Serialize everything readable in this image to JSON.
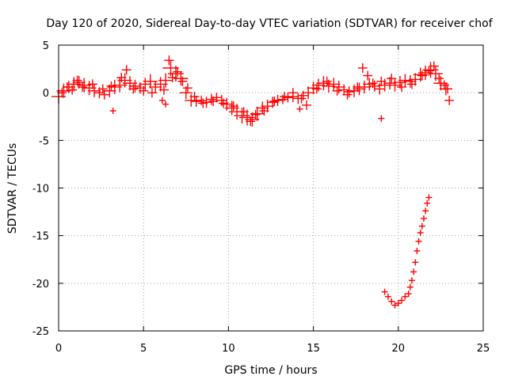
{
  "chart_data": {
    "type": "scatter",
    "title": "Day 120 of 2020, Sidereal Day-to-day VTEC variation (SDTVAR) for receiver chof",
    "xlabel": "GPS time / hours",
    "ylabel": "SDTVAR / TECUs",
    "xlim": [
      0,
      25
    ],
    "ylim": [
      -25,
      5
    ],
    "xticks": [
      0,
      5,
      10,
      15,
      20,
      25
    ],
    "yticks": [
      -25,
      -20,
      -15,
      -10,
      -5,
      0,
      5
    ],
    "xtick_labels": [
      "0",
      "5",
      "10",
      "15",
      "20",
      "25"
    ],
    "ytick_labels": [
      "-25",
      "-20",
      "-15",
      "-10",
      "-5",
      "0",
      "5"
    ],
    "grid": true,
    "marker": "+",
    "series": [
      {
        "name": "SDTVAR",
        "color": "#ff0000",
        "x": [
          0.0,
          0.3,
          0.6,
          0.9,
          1.2,
          1.5,
          1.8,
          2.1,
          2.4,
          2.7,
          3.0,
          3.3,
          3.6,
          3.9,
          4.2,
          4.5,
          4.8,
          5.1,
          5.4,
          5.7,
          6.0,
          6.3,
          6.6,
          6.9,
          7.2,
          7.5,
          7.8,
          8.1,
          8.4,
          8.7,
          9.0,
          9.3,
          9.6,
          9.9,
          10.2,
          10.5,
          10.8,
          11.1,
          11.4,
          11.7,
          12.0,
          12.3,
          12.6,
          12.9,
          13.2,
          13.5,
          13.8,
          14.1,
          14.4,
          14.7,
          15.0,
          15.3,
          15.6,
          15.9,
          16.2,
          16.5,
          16.8,
          17.1,
          17.4,
          17.7,
          18.0,
          18.3,
          18.6,
          18.9,
          19.2,
          19.5,
          19.8,
          20.1,
          20.4,
          20.7,
          21.0,
          21.3,
          21.6,
          21.9,
          22.2,
          22.5,
          22.8,
          23.0,
          0.2,
          0.5,
          0.8,
          1.1,
          1.4,
          2.0,
          2.6,
          3.1,
          3.7,
          4.0,
          4.4,
          5.0,
          5.5,
          6.2,
          6.5,
          6.7,
          7.0,
          7.3,
          7.6,
          8.0,
          8.5,
          9.1,
          9.7,
          10.3,
          10.9,
          11.3,
          11.6,
          12.1,
          12.7,
          13.3,
          13.8,
          14.3,
          14.6,
          15.2,
          15.8,
          16.4,
          17.0,
          17.6,
          17.9,
          18.2,
          18.5,
          19.0,
          19.6,
          20.2,
          20.8,
          21.4,
          21.8,
          22.1,
          22.4,
          22.7,
          22.9,
          6.1,
          6.3,
          3.2,
          14.2,
          19.0,
          19.2,
          19.4,
          19.6,
          19.8,
          20.0,
          20.2,
          20.4,
          20.6,
          20.7,
          20.8,
          20.9,
          21.0,
          21.1,
          21.2,
          21.3,
          21.4,
          21.5,
          21.6,
          21.7,
          21.8
        ],
        "y": [
          -0.4,
          0.2,
          0.6,
          0.9,
          1.1,
          0.8,
          0.5,
          0.2,
          0.0,
          -0.2,
          0.2,
          0.6,
          0.8,
          1.3,
          1.0,
          0.7,
          0.5,
          0.9,
          1.2,
          0.6,
          0.9,
          1.3,
          2.6,
          2.0,
          1.5,
          0.0,
          -0.8,
          -0.9,
          -0.8,
          -1.0,
          -0.7,
          -0.5,
          -0.8,
          -1.2,
          -1.6,
          -2.0,
          -2.4,
          -2.6,
          -2.8,
          -2.2,
          -1.6,
          -1.4,
          -1.0,
          -0.8,
          -0.7,
          -0.5,
          -0.4,
          -0.6,
          -0.3,
          0.0,
          0.5,
          0.8,
          1.0,
          0.7,
          0.9,
          0.6,
          0.3,
          0.1,
          0.2,
          0.4,
          0.6,
          0.9,
          0.7,
          0.4,
          0.8,
          1.0,
          0.8,
          1.1,
          1.3,
          1.2,
          1.4,
          1.9,
          2.1,
          2.4,
          2.0,
          1.0,
          0.4,
          -0.8,
          0.0,
          0.6,
          0.3,
          1.3,
          0.6,
          0.9,
          0.4,
          0.7,
          1.6,
          2.4,
          0.4,
          0.2,
          0.0,
          0.3,
          3.4,
          1.6,
          2.2,
          1.2,
          0.5,
          -0.4,
          -1.1,
          -0.9,
          -1.1,
          -1.4,
          -2.0,
          -3.0,
          -2.3,
          -1.9,
          -0.9,
          -0.4,
          0.0,
          -0.6,
          -1.3,
          0.4,
          1.2,
          0.2,
          -0.2,
          0.6,
          2.6,
          1.8,
          1.0,
          1.2,
          1.5,
          0.6,
          0.9,
          1.8,
          2.3,
          2.8,
          1.5,
          0.8,
          0.4,
          -0.8,
          -1.2,
          -1.9,
          -1.7,
          -2.7,
          -20.9,
          -21.4,
          -21.9,
          -22.3,
          -22.1,
          -21.8,
          -21.4,
          -21.1,
          -20.4,
          -19.7,
          -18.8,
          -17.8,
          -16.6,
          -15.6,
          -14.7,
          -14.0,
          -13.2,
          -12.4,
          -11.6,
          -11.0
        ],
        "sizes": [
          9,
          9,
          8,
          9,
          8,
          9,
          9,
          8,
          7,
          6,
          8,
          9,
          9,
          9,
          9,
          8,
          7,
          8,
          9,
          8,
          9,
          9,
          10,
          10,
          9,
          8,
          8,
          7,
          6,
          7,
          7,
          6,
          7,
          8,
          9,
          10,
          10,
          10,
          9,
          9,
          8,
          8,
          7,
          7,
          6,
          6,
          7,
          7,
          6,
          8,
          8,
          8,
          9,
          8,
          8,
          8,
          7,
          7,
          8,
          8,
          8,
          8,
          7,
          7,
          8,
          8,
          8,
          8,
          8,
          8,
          8,
          9,
          9,
          10,
          9,
          9,
          8,
          6,
          6,
          6,
          6,
          6,
          6,
          6,
          6,
          6,
          6,
          6,
          6,
          6,
          6,
          6,
          6,
          6,
          6,
          6,
          6,
          6,
          6,
          6,
          6,
          6,
          6,
          6,
          6,
          6,
          6,
          6,
          6,
          6,
          6,
          6,
          6,
          6,
          6,
          6,
          6,
          6,
          6,
          6,
          6,
          6,
          6,
          6,
          6,
          6,
          6,
          6,
          6,
          4,
          4,
          4,
          4,
          4,
          4,
          4,
          4,
          4,
          4,
          4,
          4,
          4,
          4,
          4,
          4,
          4,
          4,
          4,
          4,
          4,
          4,
          4,
          4,
          4
        ]
      }
    ]
  }
}
